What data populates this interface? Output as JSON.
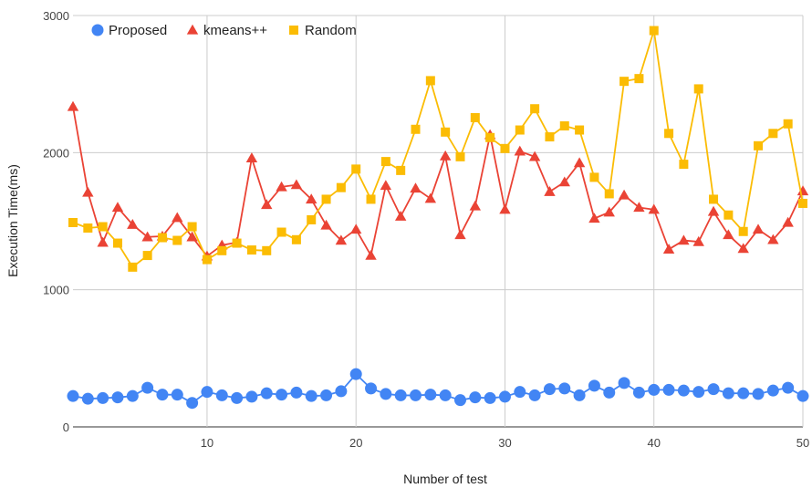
{
  "chart_data": {
    "type": "line",
    "xlabel": "Number of test",
    "ylabel": "Execution Time(ms)",
    "xlim": [
      1,
      50
    ],
    "ylim": [
      0,
      3000
    ],
    "x_ticks": [
      10,
      20,
      30,
      40,
      50
    ],
    "y_ticks": [
      0,
      1000,
      2000,
      3000
    ],
    "grid": true,
    "legend_position": "top-left",
    "x": [
      1,
      2,
      3,
      4,
      5,
      6,
      7,
      8,
      9,
      10,
      11,
      12,
      13,
      14,
      15,
      16,
      17,
      18,
      19,
      20,
      21,
      22,
      23,
      24,
      25,
      26,
      27,
      28,
      29,
      30,
      31,
      32,
      33,
      34,
      35,
      36,
      37,
      38,
      39,
      40,
      41,
      42,
      43,
      44,
      45,
      46,
      47,
      48,
      49,
      50
    ],
    "series": [
      {
        "name": "Proposed",
        "color": "#4285F4",
        "marker": "circle",
        "values": [
          225,
          205,
          210,
          215,
          225,
          285,
          235,
          235,
          175,
          255,
          230,
          210,
          220,
          245,
          235,
          250,
          225,
          230,
          260,
          385,
          280,
          240,
          230,
          230,
          235,
          230,
          195,
          215,
          210,
          220,
          255,
          230,
          275,
          280,
          230,
          300,
          250,
          320,
          250,
          270,
          270,
          265,
          255,
          275,
          245,
          245,
          240,
          265,
          285,
          225
        ]
      },
      {
        "name": "kmeans++",
        "color": "#EA4335",
        "marker": "triangle",
        "values": [
          2335,
          1710,
          1345,
          1600,
          1475,
          1385,
          1390,
          1525,
          1385,
          1245,
          1325,
          1345,
          1960,
          1620,
          1750,
          1765,
          1660,
          1470,
          1360,
          1440,
          1250,
          1760,
          1535,
          1740,
          1665,
          1975,
          1400,
          1610,
          2130,
          1585,
          2010,
          1970,
          1715,
          1785,
          1925,
          1520,
          1565,
          1690,
          1600,
          1585,
          1295,
          1360,
          1350,
          1570,
          1400,
          1300,
          1440,
          1365,
          1490,
          1720
        ]
      },
      {
        "name": "Random",
        "color": "#FBBC04",
        "marker": "square",
        "values": [
          1490,
          1450,
          1460,
          1340,
          1165,
          1250,
          1380,
          1360,
          1460,
          1220,
          1285,
          1340,
          1290,
          1285,
          1420,
          1365,
          1510,
          1660,
          1745,
          1880,
          1660,
          1935,
          1870,
          2170,
          2525,
          2150,
          1970,
          2255,
          2110,
          2030,
          2165,
          2320,
          2115,
          2195,
          2165,
          1820,
          1700,
          2520,
          2540,
          2890,
          2140,
          1915,
          2465,
          1660,
          1545,
          1425,
          2050,
          2140,
          2210,
          1630
        ]
      }
    ]
  }
}
